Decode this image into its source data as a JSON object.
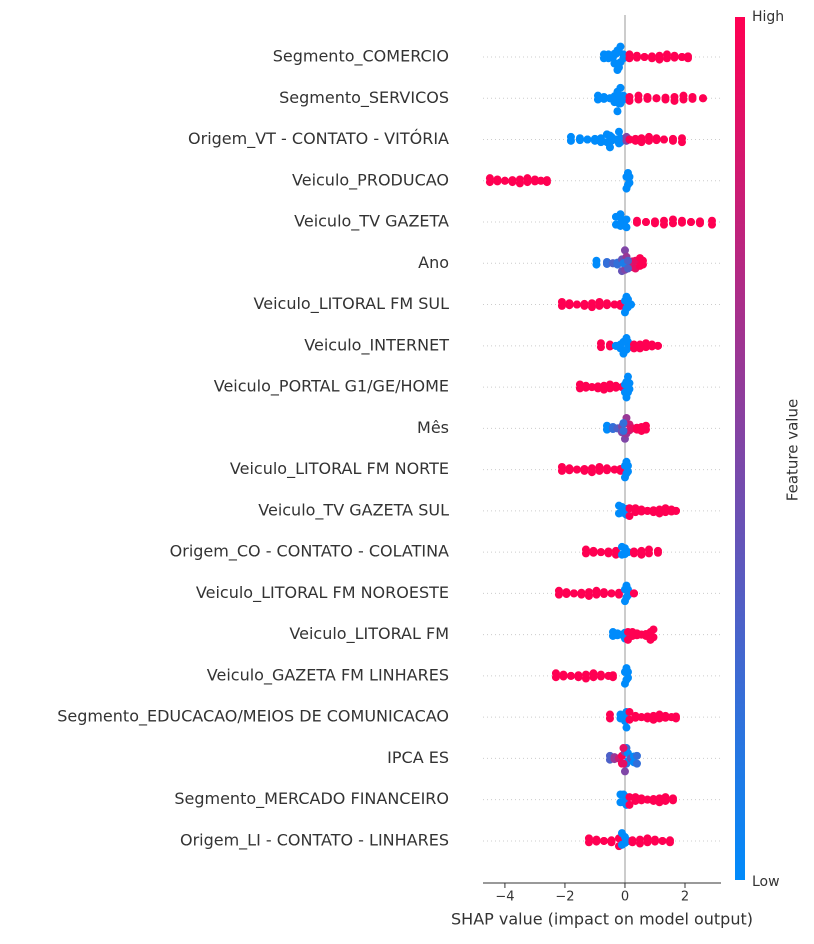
{
  "chart_data": {
    "type": "beeswarm",
    "xlabel": "SHAP value (impact on model output)",
    "colorbar_label": "Feature value",
    "colorbar_high": "High",
    "colorbar_low": "Low",
    "colors": {
      "low": "#008bfb",
      "high": "#ff0052"
    },
    "xlim": [
      -4.73,
      3.2
    ],
    "xticks": [
      {
        "value": -4,
        "label": "−4"
      },
      {
        "value": -2,
        "label": "−2"
      },
      0,
      2
    ],
    "categories": [
      "Segmento_COMERCIO",
      "Segmento_SERVICOS",
      "Origem_VT - CONTATO - VITÓRIA",
      "Veiculo_PRODUCAO",
      "Veiculo_TV GAZETA",
      "Ano",
      "Veiculo_LITORAL FM SUL",
      "Veiculo_INTERNET",
      "Veiculo_PORTAL G1/GE/HOME",
      "Mês",
      "Veiculo_LITORAL FM NORTE",
      "Veiculo_TV GAZETA SUL",
      "Origem_CO - CONTATO - COLATINA",
      "Veiculo_LITORAL FM NOROESTE",
      "Veiculo_LITORAL FM",
      "Veiculo_GAZETA FM LINHARES",
      "Segmento_EDUCACAO/MEIOS DE COMUNICACAO",
      "IPCA ES",
      "Segmento_MERCADO FINANCEIRO",
      "Origem_LI - CONTATO - LINHARES"
    ],
    "points": [
      [
        [
          -0.7,
          0
        ],
        [
          -0.55,
          0
        ],
        [
          -0.45,
          0
        ],
        [
          -0.35,
          0
        ],
        [
          -0.25,
          0
        ],
        [
          -0.15,
          0
        ],
        [
          -0.05,
          0
        ],
        [
          -0.4,
          0
        ],
        [
          -0.3,
          0
        ],
        [
          -0.2,
          0
        ],
        [
          0.15,
          1
        ],
        [
          0.4,
          1
        ],
        [
          0.65,
          1
        ],
        [
          0.9,
          1
        ],
        [
          1.15,
          1
        ],
        [
          1.4,
          1
        ],
        [
          1.65,
          1
        ],
        [
          1.9,
          1
        ],
        [
          2.1,
          1
        ]
      ],
      [
        [
          -0.9,
          0
        ],
        [
          -0.7,
          0
        ],
        [
          -0.5,
          0
        ],
        [
          -0.35,
          0
        ],
        [
          -0.25,
          0
        ],
        [
          -0.15,
          0
        ],
        [
          -0.05,
          0
        ],
        [
          -0.3,
          0
        ],
        [
          -0.2,
          0
        ],
        [
          0.15,
          1
        ],
        [
          0.45,
          1
        ],
        [
          0.75,
          1
        ],
        [
          1.05,
          1
        ],
        [
          1.35,
          1
        ],
        [
          1.65,
          1
        ],
        [
          1.95,
          1
        ],
        [
          2.25,
          1
        ],
        [
          2.6,
          1
        ]
      ],
      [
        [
          -1.8,
          0
        ],
        [
          -1.5,
          0
        ],
        [
          -1.25,
          0
        ],
        [
          -1.0,
          0
        ],
        [
          -0.8,
          0
        ],
        [
          -0.6,
          0
        ],
        [
          -0.45,
          0
        ],
        [
          -0.3,
          0
        ],
        [
          -0.15,
          0
        ],
        [
          -0.5,
          0
        ],
        [
          -0.2,
          0
        ],
        [
          0.05,
          0.5
        ],
        [
          0.15,
          1
        ],
        [
          0.35,
          1
        ],
        [
          0.55,
          1
        ],
        [
          0.8,
          1
        ],
        [
          1.05,
          1
        ],
        [
          1.3,
          1
        ],
        [
          1.6,
          1
        ],
        [
          1.9,
          1
        ]
      ],
      [
        [
          -4.5,
          1
        ],
        [
          -4.25,
          1
        ],
        [
          -4.0,
          1
        ],
        [
          -3.75,
          1
        ],
        [
          -3.5,
          1
        ],
        [
          -3.25,
          1
        ],
        [
          -3.0,
          1
        ],
        [
          -2.8,
          1
        ],
        [
          -2.6,
          1
        ],
        [
          0.05,
          0
        ],
        [
          0.1,
          0
        ],
        [
          0.15,
          0
        ]
      ],
      [
        [
          -0.3,
          0
        ],
        [
          -0.2,
          0
        ],
        [
          -0.1,
          0
        ],
        [
          0.0,
          0
        ],
        [
          0.05,
          0
        ],
        [
          -0.15,
          0
        ],
        [
          0.4,
          1
        ],
        [
          0.7,
          1
        ],
        [
          1.0,
          1
        ],
        [
          1.3,
          1
        ],
        [
          1.6,
          1
        ],
        [
          1.9,
          1
        ],
        [
          2.2,
          1
        ],
        [
          2.5,
          1
        ],
        [
          2.9,
          1
        ]
      ],
      [
        [
          -0.95,
          0
        ],
        [
          -0.6,
          0.2
        ],
        [
          -0.4,
          0.3
        ],
        [
          -0.25,
          0.2
        ],
        [
          -0.1,
          0.4
        ],
        [
          0.0,
          0.5
        ],
        [
          0.05,
          0.6
        ],
        [
          0.15,
          0.7
        ],
        [
          0.25,
          0.8
        ],
        [
          0.35,
          0.9
        ],
        [
          0.5,
          1
        ],
        [
          0.6,
          1
        ],
        [
          -0.05,
          0.1
        ],
        [
          0.1,
          0.3
        ]
      ],
      [
        [
          -2.1,
          1
        ],
        [
          -1.85,
          1
        ],
        [
          -1.6,
          1
        ],
        [
          -1.35,
          1
        ],
        [
          -1.1,
          1
        ],
        [
          -0.85,
          1
        ],
        [
          -0.6,
          1
        ],
        [
          -0.35,
          1
        ],
        [
          -0.15,
          1
        ],
        [
          0.0,
          0
        ],
        [
          0.05,
          0
        ],
        [
          0.1,
          0
        ],
        [
          0.2,
          0
        ]
      ],
      [
        [
          -0.8,
          1
        ],
        [
          -0.5,
          1
        ],
        [
          -0.3,
          0
        ],
        [
          -0.15,
          0
        ],
        [
          -0.05,
          0
        ],
        [
          0.05,
          0
        ],
        [
          0.1,
          0
        ],
        [
          0.2,
          0
        ],
        [
          0.3,
          1
        ],
        [
          0.5,
          1
        ],
        [
          0.7,
          1
        ],
        [
          0.9,
          1
        ],
        [
          1.1,
          1
        ]
      ],
      [
        [
          -1.5,
          1
        ],
        [
          -1.3,
          1
        ],
        [
          -1.1,
          1
        ],
        [
          -0.9,
          1
        ],
        [
          -0.7,
          1
        ],
        [
          -0.5,
          1
        ],
        [
          -0.3,
          1
        ],
        [
          -0.1,
          1
        ],
        [
          0.0,
          0
        ],
        [
          0.05,
          0
        ],
        [
          0.1,
          0
        ],
        [
          0.15,
          0
        ]
      ],
      [
        [
          -0.6,
          0
        ],
        [
          -0.4,
          0.2
        ],
        [
          -0.25,
          0.3
        ],
        [
          -0.1,
          0.5
        ],
        [
          0.0,
          0.5
        ],
        [
          0.05,
          0.6
        ],
        [
          0.15,
          0.8
        ],
        [
          0.25,
          0.9
        ],
        [
          0.4,
          1
        ],
        [
          0.55,
          1
        ],
        [
          0.7,
          1
        ],
        [
          -0.05,
          0.2
        ]
      ],
      [
        [
          -2.1,
          1
        ],
        [
          -1.85,
          1
        ],
        [
          -1.6,
          1
        ],
        [
          -1.35,
          1
        ],
        [
          -1.1,
          1
        ],
        [
          -0.85,
          1
        ],
        [
          -0.6,
          1
        ],
        [
          -0.35,
          1
        ],
        [
          -0.15,
          1
        ],
        [
          0.0,
          0
        ],
        [
          0.05,
          0
        ],
        [
          0.1,
          0
        ]
      ],
      [
        [
          -0.2,
          0
        ],
        [
          -0.1,
          0
        ],
        [
          0.0,
          0
        ],
        [
          0.05,
          0
        ],
        [
          0.15,
          1
        ],
        [
          0.35,
          1
        ],
        [
          0.55,
          1
        ],
        [
          0.75,
          1
        ],
        [
          0.95,
          1
        ],
        [
          1.15,
          1
        ],
        [
          1.35,
          1
        ],
        [
          1.55,
          1
        ],
        [
          1.7,
          1
        ]
      ],
      [
        [
          -1.3,
          1
        ],
        [
          -1.05,
          1
        ],
        [
          -0.8,
          1
        ],
        [
          -0.55,
          1
        ],
        [
          -0.3,
          1
        ],
        [
          -0.1,
          0
        ],
        [
          0.0,
          0
        ],
        [
          0.1,
          0
        ],
        [
          0.3,
          1
        ],
        [
          0.55,
          1
        ],
        [
          0.8,
          1
        ],
        [
          1.1,
          1
        ]
      ],
      [
        [
          -2.2,
          1
        ],
        [
          -1.95,
          1
        ],
        [
          -1.7,
          1
        ],
        [
          -1.45,
          1
        ],
        [
          -1.2,
          1
        ],
        [
          -0.95,
          1
        ],
        [
          -0.7,
          1
        ],
        [
          -0.45,
          1
        ],
        [
          -0.2,
          1
        ],
        [
          0.0,
          0
        ],
        [
          0.05,
          0
        ],
        [
          0.1,
          0
        ],
        [
          0.3,
          1
        ]
      ],
      [
        [
          -0.4,
          0
        ],
        [
          -0.25,
          0
        ],
        [
          -0.1,
          0
        ],
        [
          0.0,
          0
        ],
        [
          0.1,
          1
        ],
        [
          0.25,
          1
        ],
        [
          0.4,
          1
        ],
        [
          0.55,
          1
        ],
        [
          0.7,
          1
        ],
        [
          0.85,
          1
        ],
        [
          0.95,
          1
        ]
      ],
      [
        [
          -2.3,
          1
        ],
        [
          -2.05,
          1
        ],
        [
          -1.8,
          1
        ],
        [
          -1.55,
          1
        ],
        [
          -1.3,
          1
        ],
        [
          -1.05,
          1
        ],
        [
          -0.8,
          1
        ],
        [
          -0.55,
          1
        ],
        [
          -0.4,
          1
        ],
        [
          0.0,
          0
        ],
        [
          0.05,
          0
        ],
        [
          0.1,
          0
        ]
      ],
      [
        [
          -0.5,
          1
        ],
        [
          -0.15,
          0
        ],
        [
          -0.05,
          0
        ],
        [
          0.0,
          0
        ],
        [
          0.05,
          0
        ],
        [
          0.15,
          1
        ],
        [
          0.35,
          1
        ],
        [
          0.55,
          1
        ],
        [
          0.75,
          1
        ],
        [
          0.95,
          1
        ],
        [
          1.15,
          1
        ],
        [
          1.35,
          1
        ],
        [
          1.55,
          1
        ],
        [
          1.7,
          1
        ]
      ],
      [
        [
          -0.5,
          0.3
        ],
        [
          -0.35,
          0.6
        ],
        [
          -0.2,
          0.8
        ],
        [
          -0.1,
          1
        ],
        [
          0.0,
          0.5
        ],
        [
          0.05,
          0.2
        ],
        [
          0.1,
          0
        ],
        [
          0.2,
          0.4
        ],
        [
          0.3,
          0
        ],
        [
          0.4,
          0.2
        ],
        [
          -0.05,
          0.9
        ]
      ],
      [
        [
          -0.15,
          0
        ],
        [
          -0.05,
          0
        ],
        [
          0.0,
          0
        ],
        [
          0.05,
          0
        ],
        [
          0.15,
          1
        ],
        [
          0.35,
          1
        ],
        [
          0.55,
          1
        ],
        [
          0.75,
          1
        ],
        [
          0.95,
          1
        ],
        [
          1.15,
          1
        ],
        [
          1.35,
          1
        ],
        [
          1.6,
          1
        ]
      ],
      [
        [
          -1.2,
          1
        ],
        [
          -0.95,
          1
        ],
        [
          -0.7,
          1
        ],
        [
          -0.45,
          1
        ],
        [
          -0.2,
          1
        ],
        [
          -0.1,
          0
        ],
        [
          0.0,
          0
        ],
        [
          0.1,
          0
        ],
        [
          0.25,
          1
        ],
        [
          0.5,
          1
        ],
        [
          0.75,
          1
        ],
        [
          1.0,
          1
        ],
        [
          1.25,
          1
        ],
        [
          1.5,
          1
        ]
      ]
    ]
  }
}
